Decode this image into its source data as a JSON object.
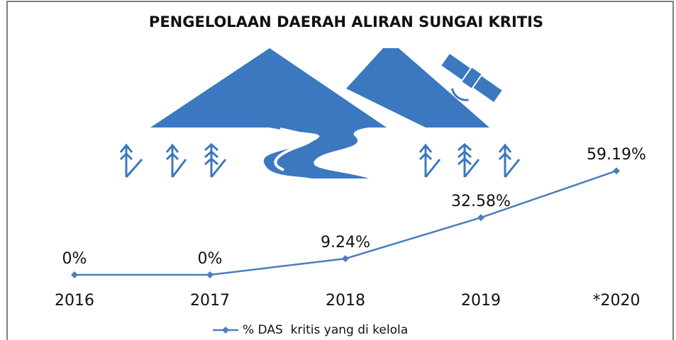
{
  "chart_data": {
    "type": "line",
    "title": "PENGELOLAAN DAERAH ALIRAN SUNGAI KRITIS",
    "categories": [
      "2016",
      "2017",
      "2018",
      "2019",
      "*2020"
    ],
    "series": [
      {
        "name": "% DAS  kritis yang di kelola",
        "color": "#4a7ebb",
        "values": [
          0,
          0,
          9.24,
          32.58,
          59.19
        ],
        "value_labels": [
          "0%",
          "0%",
          "9.24%",
          "32.58%",
          "59.19%"
        ]
      }
    ]
  }
}
